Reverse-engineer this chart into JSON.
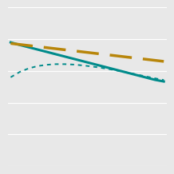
{
  "title": "",
  "background_color": "#e8e8e8",
  "plot_bg_color": "#e8e8e8",
  "x_values": [
    0,
    1,
    2,
    3,
    4,
    5,
    6,
    7,
    8,
    9,
    10,
    11,
    12,
    13,
    14,
    15,
    16,
    17
  ],
  "line_dashed": {
    "y": [
      0.88,
      0.875,
      0.87,
      0.865,
      0.86,
      0.855,
      0.85,
      0.845,
      0.84,
      0.835,
      0.83,
      0.825,
      0.82,
      0.815,
      0.81,
      0.805,
      0.8,
      0.795
    ],
    "color": "#b8860b",
    "linewidth": 2.5,
    "dashes": [
      8,
      4
    ]
  },
  "line_solid": {
    "y": [
      0.885,
      0.873,
      0.862,
      0.851,
      0.84,
      0.829,
      0.818,
      0.807,
      0.796,
      0.785,
      0.774,
      0.763,
      0.752,
      0.741,
      0.73,
      0.719,
      0.708,
      0.7
    ],
    "color": "#008b8b",
    "linewidth": 2.2
  },
  "line_dotted": {
    "y": [
      0.72,
      0.745,
      0.762,
      0.773,
      0.779,
      0.782,
      0.782,
      0.78,
      0.776,
      0.771,
      0.765,
      0.758,
      0.75,
      0.742,
      0.733,
      0.724,
      0.715,
      0.707
    ],
    "color": "#008b8b",
    "linewidth": 1.4,
    "dotsize": 2.5
  },
  "ylim": [
    0.3,
    1.05
  ],
  "xlim": [
    -0.3,
    17.3
  ],
  "grid_color": "#ffffff",
  "grid_linewidth": 0.8,
  "n_yticks": 6
}
